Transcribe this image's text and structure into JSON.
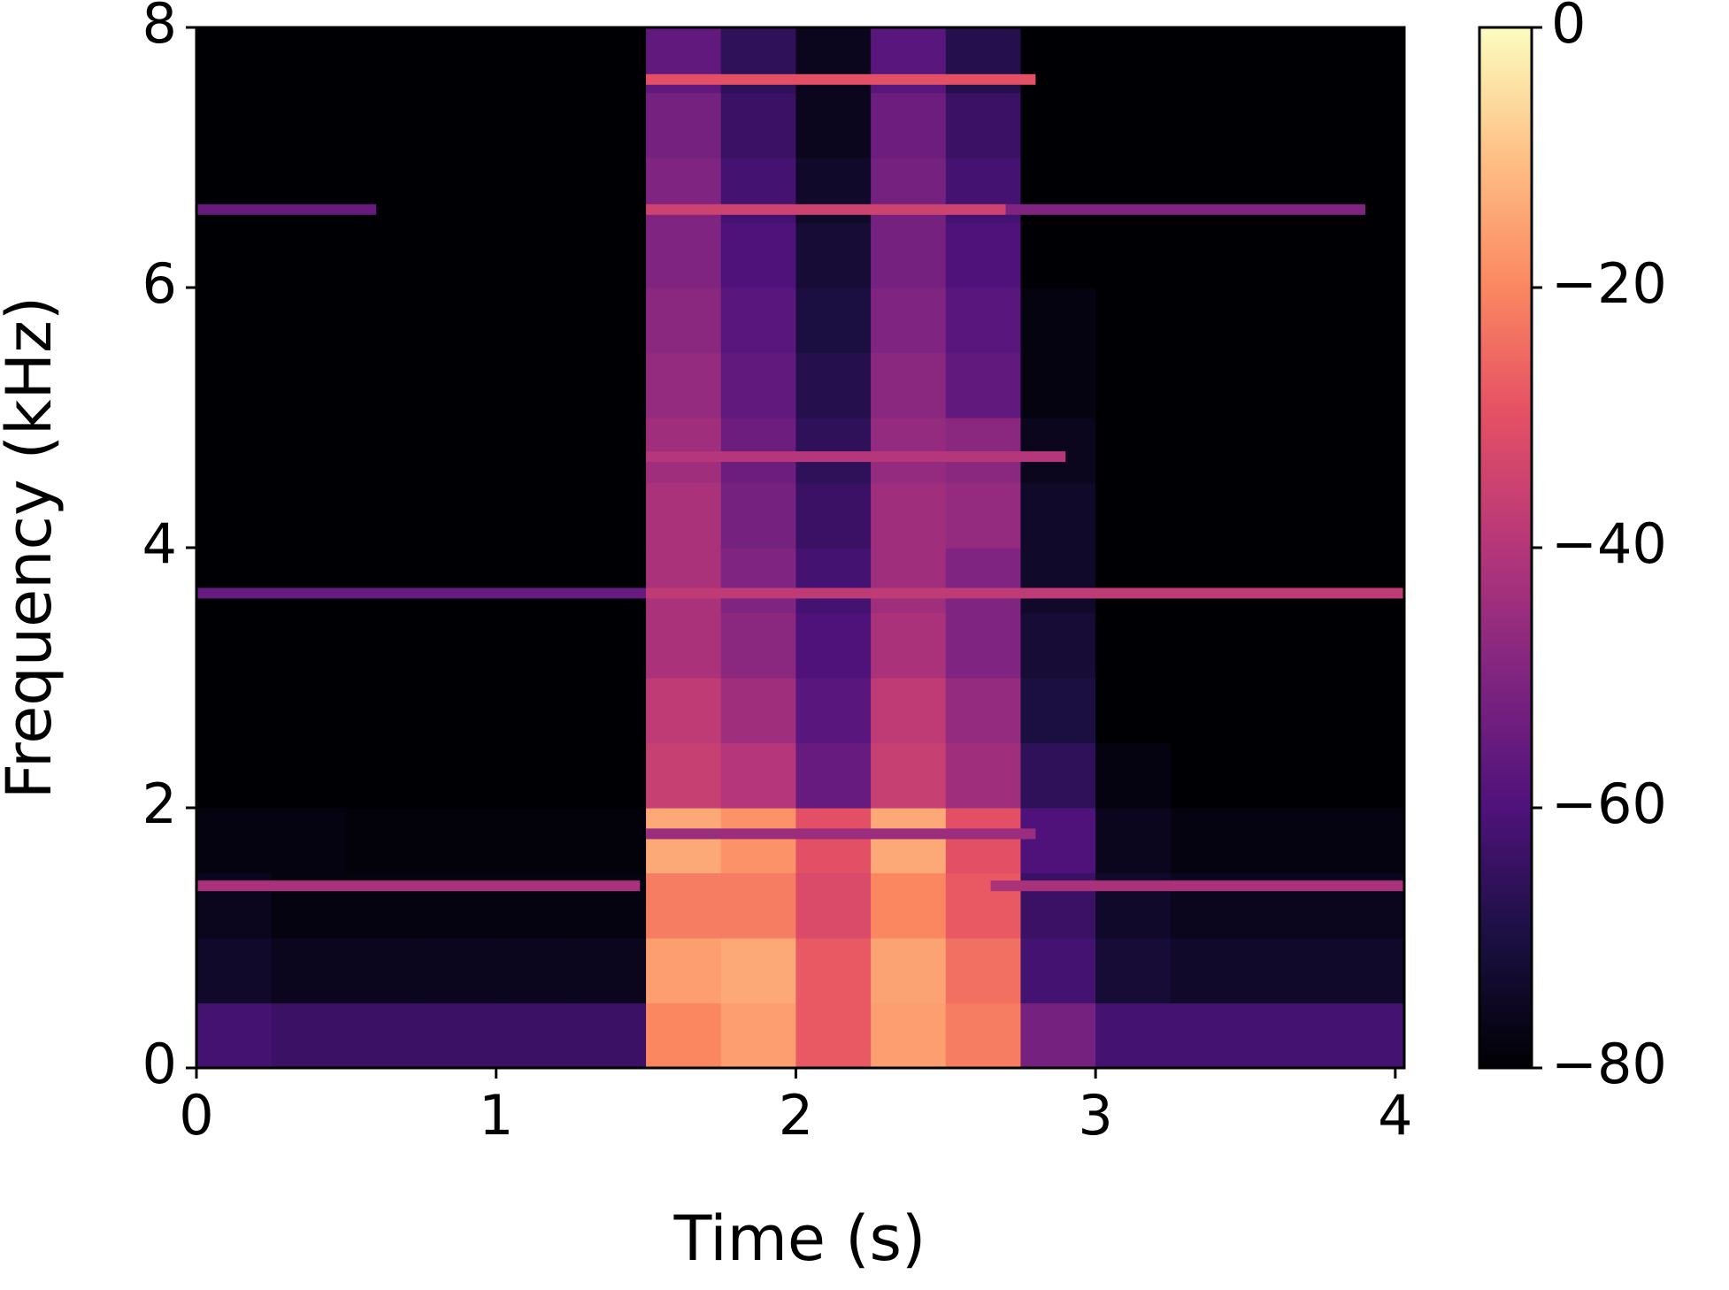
{
  "chart_data": {
    "type": "heatmap",
    "colormap": "magma",
    "xlabel": "Time (s)",
    "ylabel": "Frequency (kHz)",
    "xlim": [
      0,
      4.03
    ],
    "ylim": [
      0,
      8
    ],
    "xticks": [
      0,
      1,
      2,
      3,
      4
    ],
    "yticks": [
      0,
      2,
      4,
      6,
      8
    ],
    "xbins": [
      0,
      0.25,
      0.5,
      0.75,
      1,
      1.25,
      1.5,
      1.75,
      2,
      2.25,
      2.5,
      2.75,
      3,
      3.25,
      3.5,
      3.75,
      4.03
    ],
    "ybins": [
      0,
      0.5,
      1,
      1.5,
      2,
      2.5,
      3,
      3.5,
      4,
      4.5,
      5,
      5.5,
      6,
      6.5,
      7,
      7.5,
      8
    ],
    "z": [
      [
        -62,
        -64,
        -64,
        -64,
        -64,
        -64,
        -20,
        -16,
        -28,
        -16,
        -22,
        -52,
        -62,
        -62,
        -62,
        -62
      ],
      [
        -74,
        -76,
        -76,
        -76,
        -76,
        -76,
        -16,
        -14,
        -28,
        -15,
        -24,
        -62,
        -72,
        -74,
        -74,
        -74
      ],
      [
        -76,
        -78,
        -78,
        -78,
        -78,
        -78,
        -22,
        -22,
        -32,
        -20,
        -28,
        -64,
        -74,
        -76,
        -76,
        -76
      ],
      [
        -78,
        -78,
        -79,
        -79,
        -79,
        -79,
        -14,
        -18,
        -30,
        -14,
        -30,
        -60,
        -76,
        -78,
        -78,
        -78
      ],
      [
        -80,
        -80,
        -80,
        -80,
        -80,
        -80,
        -36,
        -40,
        -55,
        -36,
        -44,
        -66,
        -78,
        -80,
        -80,
        -80
      ],
      [
        -80,
        -80,
        -80,
        -80,
        -80,
        -80,
        -38,
        -44,
        -58,
        -38,
        -46,
        -70,
        -80,
        -80,
        -80,
        -80
      ],
      [
        -80,
        -80,
        -80,
        -80,
        -80,
        -80,
        -42,
        -48,
        -60,
        -42,
        -50,
        -72,
        -80,
        -80,
        -80,
        -80
      ],
      [
        -80,
        -80,
        -80,
        -80,
        -80,
        -80,
        -42,
        -50,
        -62,
        -44,
        -50,
        -74,
        -80,
        -80,
        -80,
        -80
      ],
      [
        -80,
        -80,
        -80,
        -80,
        -80,
        -80,
        -42,
        -52,
        -64,
        -44,
        -46,
        -74,
        -80,
        -80,
        -80,
        -80
      ],
      [
        -80,
        -80,
        -80,
        -80,
        -80,
        -80,
        -44,
        -54,
        -66,
        -46,
        -48,
        -76,
        -80,
        -80,
        -80,
        -80
      ],
      [
        -80,
        -80,
        -80,
        -80,
        -80,
        -80,
        -46,
        -56,
        -68,
        -48,
        -56,
        -78,
        -80,
        -80,
        -80,
        -80
      ],
      [
        -80,
        -80,
        -80,
        -80,
        -80,
        -80,
        -48,
        -58,
        -70,
        -50,
        -58,
        -78,
        -80,
        -80,
        -80,
        -80
      ],
      [
        -80,
        -80,
        -80,
        -80,
        -80,
        -80,
        -50,
        -60,
        -72,
        -52,
        -60,
        -80,
        -80,
        -80,
        -80,
        -80
      ],
      [
        -80,
        -80,
        -80,
        -80,
        -80,
        -80,
        -50,
        -62,
        -74,
        -52,
        -62,
        -80,
        -80,
        -80,
        -80,
        -80
      ],
      [
        -80,
        -80,
        -80,
        -80,
        -80,
        -80,
        -52,
        -64,
        -76,
        -54,
        -64,
        -80,
        -80,
        -80,
        -80,
        -80
      ],
      [
        -80,
        -80,
        -80,
        -80,
        -80,
        -80,
        -56,
        -66,
        -76,
        -58,
        -68,
        -80,
        -80,
        -80,
        -80,
        -80
      ]
    ],
    "tones": [
      {
        "y": 1.4,
        "x": [
          0,
          1.48
        ],
        "value": -42
      },
      {
        "y": 1.4,
        "x": [
          2.65,
          4.03
        ],
        "value": -42
      },
      {
        "y": 1.8,
        "x": [
          1.5,
          2.8
        ],
        "value": -45
      },
      {
        "y": 3.65,
        "x": [
          0,
          1.5
        ],
        "value": -55
      },
      {
        "y": 3.65,
        "x": [
          1.5,
          4.03
        ],
        "value": -38
      },
      {
        "y": 4.7,
        "x": [
          1.5,
          2.9
        ],
        "value": -40
      },
      {
        "y": 6.6,
        "x": [
          0,
          0.6
        ],
        "value": -55
      },
      {
        "y": 6.6,
        "x": [
          1.5,
          2.7
        ],
        "value": -35
      },
      {
        "y": 6.6,
        "x": [
          2.7,
          3.9
        ],
        "value": -50
      },
      {
        "y": 7.6,
        "x": [
          1.5,
          2.8
        ],
        "value": -30
      }
    ],
    "clim": [
      -80,
      0
    ],
    "cticks": [
      0,
      {
        "value": -20,
        "label": "−20"
      },
      {
        "value": -40,
        "label": "−40"
      },
      {
        "value": -60,
        "label": "−60"
      },
      {
        "value": -80,
        "label": "−80"
      }
    ]
  }
}
